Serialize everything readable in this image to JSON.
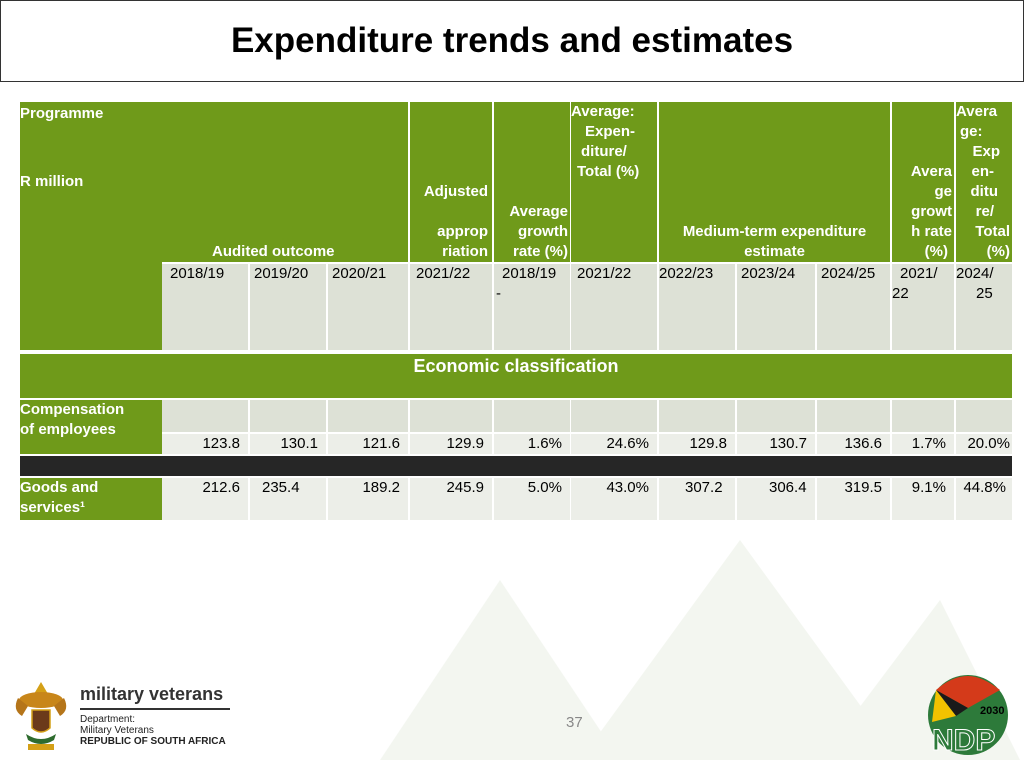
{
  "title": "Expenditure trends and estimates",
  "header": {
    "programme": "Programme",
    "r_million": "R million",
    "audited_outcome": "Audited outcome",
    "adjusted_1": "Adjusted",
    "adjusted_2": "approp",
    "adjusted_3": "riation",
    "avg_growth_1": "Average",
    "avg_growth_2": "growth",
    "avg_growth_3": "rate (%)",
    "avg_exp_1": "Average:",
    "avg_exp_2": "Expen-",
    "avg_exp_3": "diture/",
    "avg_exp_4": "Total (%)",
    "mtef_1": "Medium-term expenditure",
    "mtef_2": "estimate",
    "avg_growth2_1": "Avera",
    "avg_growth2_2": "ge",
    "avg_growth2_3": "growt",
    "avg_growth2_4": "h rate",
    "avg_growth2_5": "(%)",
    "avg_exp2_1": "Avera",
    "avg_exp2_2": "ge:",
    "avg_exp2_3": "Exp",
    "avg_exp2_4": "en-",
    "avg_exp2_5": "ditu",
    "avg_exp2_6": "re/",
    "avg_exp2_7": "Total",
    "avg_exp2_8": "(%)"
  },
  "years": {
    "y1": "2018/19",
    "y2": "2019/20",
    "y3": "2020/21",
    "y4": "2021/22",
    "y5a": "2018/19",
    "y5b": "-",
    "y6": "2021/22",
    "y7": "2022/23",
    "y8": "2023/24",
    "y9": "2024/25",
    "y10a": "2021/",
    "y10b": "22",
    "y11a": "2024/",
    "y11b": "25"
  },
  "section": "Economic classification",
  "rows": [
    {
      "label_1": "Compensation",
      "label_2": "of employees",
      "values": [
        "123.8",
        "130.1",
        "121.6",
        "129.9",
        "1.6%",
        "24.6%",
        "129.8",
        "130.7",
        "136.6",
        "1.7%",
        "20.0%"
      ]
    },
    {
      "label_1": "Goods and",
      "label_2": "services¹",
      "values": [
        "212.6",
        "235.4",
        "189.2",
        "245.9",
        "5.0%",
        "43.0%",
        "307.2",
        "306.4",
        "319.5",
        "9.1%",
        "44.8%"
      ]
    }
  ],
  "footer": {
    "brand": "military veterans",
    "dept_1": "Department:",
    "dept_2": "Military Veterans",
    "dept_3": "REPUBLIC OF SOUTH AFRICA",
    "page_number": "37",
    "ndp_year": "2030",
    "ndp_text": "NDP"
  },
  "colors": {
    "header_green": "#6f9a1a",
    "cell_light": "#dde1d6",
    "cell_white": "#eceee8",
    "separator": "#262626"
  }
}
